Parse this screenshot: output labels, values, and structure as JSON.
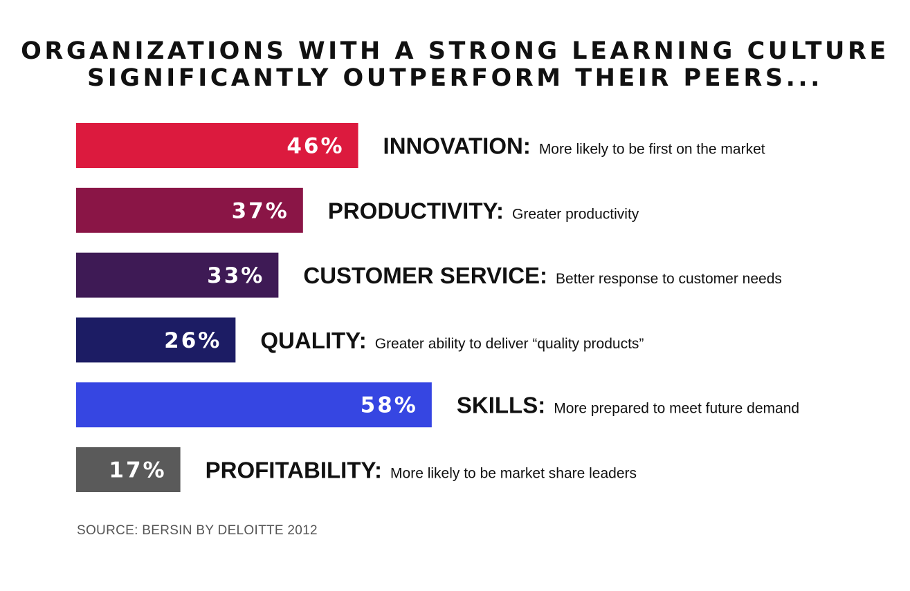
{
  "chart_data": {
    "type": "bar",
    "orientation": "horizontal",
    "title": [
      "ORGANIZATIONS WITH A STRONG LEARNING CULTURE",
      "SIGNIFICANTLY OUTPERFORM THEIR PEERS..."
    ],
    "xlabel": "",
    "ylabel": "",
    "grid": false,
    "legend": "none",
    "xlim": [
      0,
      100
    ],
    "unit": "%",
    "categories": [
      "INNOVATION:",
      "PRODUCTIVITY:",
      "CUSTOMER SERVICE:",
      "QUALITY:",
      "SKILLS:",
      "PROFITABILITY:"
    ],
    "descriptions": [
      "More likely to be first on the market",
      "Greater productivity",
      "Better response to customer needs",
      "Greater ability to deliver “quality products”",
      "More prepared to meet future demand",
      "More likely to be market share leaders"
    ],
    "values": [
      46,
      37,
      33,
      26,
      58,
      17
    ],
    "value_labels": [
      "46%",
      "37%",
      "33%",
      "26%",
      "58%",
      "17%"
    ],
    "colors": [
      "#dc1a3e",
      "#8a1546",
      "#3e1a55",
      "#1c1c64",
      "#3646e2",
      "#5a5a5a"
    ]
  },
  "source": "SOURCE: BERSIN BY DELOITTE 2012"
}
